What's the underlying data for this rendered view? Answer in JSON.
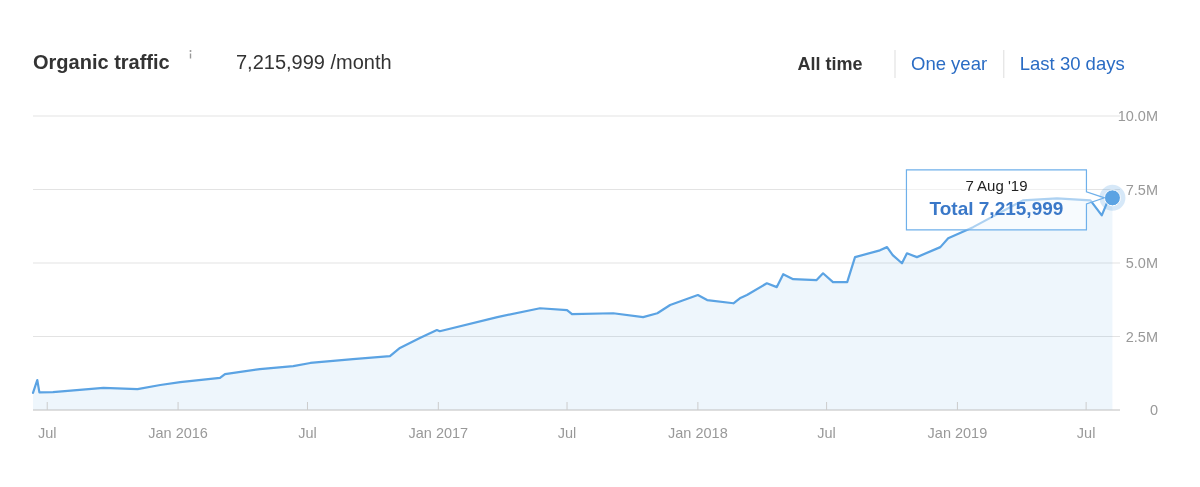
{
  "chart_data": {
    "type": "area",
    "title": "Organic traffic",
    "subtitle": "7,215,999 /month",
    "x": [
      "2015-06-11",
      "2015-06-17",
      "2015-06-20",
      "2015-07-09",
      "2015-09-18",
      "2015-11-05",
      "2015-12-07",
      "2016-01-04",
      "2016-02-29",
      "2016-03-07",
      "2016-04-25",
      "2016-06-11",
      "2016-07-05",
      "2016-09-03",
      "2016-10-25",
      "2016-11-08",
      "2016-12-06",
      "2016-12-30",
      "2017-01-03",
      "2017-03-25",
      "2017-05-24",
      "2017-07-01",
      "2017-07-08",
      "2017-09-04",
      "2017-10-16",
      "2017-11-05",
      "2017-11-23",
      "2018-01-01",
      "2018-01-14",
      "2018-02-20",
      "2018-03-01",
      "2018-03-11",
      "2018-04-08",
      "2018-04-22",
      "2018-05-01",
      "2018-05-15",
      "2018-06-17",
      "2018-06-26",
      "2018-07-10",
      "2018-07-30",
      "2018-08-10",
      "2018-09-14",
      "2018-09-24",
      "2018-10-02",
      "2018-10-15",
      "2018-10-22",
      "2018-11-05",
      "2018-12-08",
      "2018-12-19",
      "2019-01-23",
      "2019-04-03",
      "2019-05-21",
      "2019-07-07",
      "2019-07-23",
      "2019-07-30",
      "2019-08-07"
    ],
    "series": [
      {
        "color": "#5ba3e3",
        "values": [
          580000,
          1020000,
          600000,
          610000,
          750000,
          710000,
          850000,
          950000,
          1090000,
          1220000,
          1390000,
          1490000,
          1600000,
          1730000,
          1830000,
          2110000,
          2450000,
          2720000,
          2680000,
          3160000,
          3460000,
          3400000,
          3260000,
          3290000,
          3160000,
          3290000,
          3570000,
          3910000,
          3740000,
          3630000,
          3800000,
          3910000,
          4310000,
          4180000,
          4620000,
          4450000,
          4420000,
          4650000,
          4350000,
          4350000,
          5200000,
          5430000,
          5540000,
          5270000,
          4990000,
          5330000,
          5200000,
          5540000,
          5840000,
          6220000,
          7130000,
          7200000,
          7130000,
          6620000,
          7030000,
          7215999
        ]
      }
    ],
    "xlim": [
      "2015-06-11",
      "2019-08-12"
    ],
    "xticks": [
      {
        "value": "2015-07-01",
        "label": "Jul"
      },
      {
        "value": "2016-01-01",
        "label": "Jan 2016"
      },
      {
        "value": "2016-07-01",
        "label": "Jul"
      },
      {
        "value": "2017-01-01",
        "label": "Jan 2017"
      },
      {
        "value": "2017-07-01",
        "label": "Jul"
      },
      {
        "value": "2018-01-01",
        "label": "Jan 2018"
      },
      {
        "value": "2018-07-01",
        "label": "Jul"
      },
      {
        "value": "2019-01-01",
        "label": "Jan 2019"
      },
      {
        "value": "2019-07-01",
        "label": "Jul"
      }
    ],
    "ylim": [
      0,
      10000000
    ],
    "yticks": [
      0,
      {
        "value": 2500000,
        "label": "2.5M"
      },
      {
        "value": 5000000,
        "label": "5.0M"
      },
      {
        "value": 7500000,
        "label": "7.5M"
      },
      {
        "value": 10000000,
        "label": "10.0M"
      }
    ],
    "grid": "y",
    "marker": "none",
    "annotations": [
      {
        "text": "7 Aug '19\nTotal 7,215,999",
        "x": "2019-08-07",
        "y": 7215999
      },
      "All time",
      "One year",
      "Last 30 days"
    ]
  }
}
